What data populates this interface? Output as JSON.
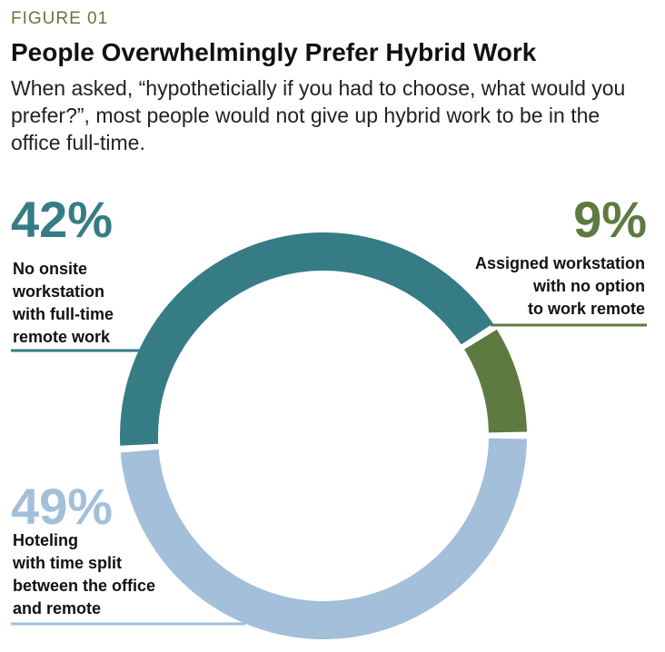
{
  "figure_label": "FIGURE 01",
  "chart_data": {
    "type": "pie",
    "style": "donut",
    "title": "People Overwhelmingly Prefer Hybrid Work",
    "subtitle": "When asked, “hypotheticially if you had to choose, what would you prefer?”, most people would not give up hybrid work to be in the office full-time.",
    "slices": [
      {
        "label": "No onsite workstation with full-time remote work",
        "value": 42,
        "value_label": "42%",
        "color": "#367c85"
      },
      {
        "label": "Assigned workstation with no option to work remote",
        "value": 9,
        "value_label": "9%",
        "color": "#5d7a40"
      },
      {
        "label": "Hoteling with time split between the office and remote",
        "value": 49,
        "value_label": "49%",
        "color": "#a3bfd9"
      }
    ]
  },
  "labels": {
    "remote": {
      "pct": "42%",
      "text": "No onsite\nworkstation\nwith full-time\nremote work"
    },
    "assigned": {
      "pct": "9%",
      "text": "Assigned workstation\nwith no option\nto work remote"
    },
    "hotel": {
      "pct": "49%",
      "text": "Hoteling\nwith time split\nbetween the office\nand remote"
    }
  }
}
